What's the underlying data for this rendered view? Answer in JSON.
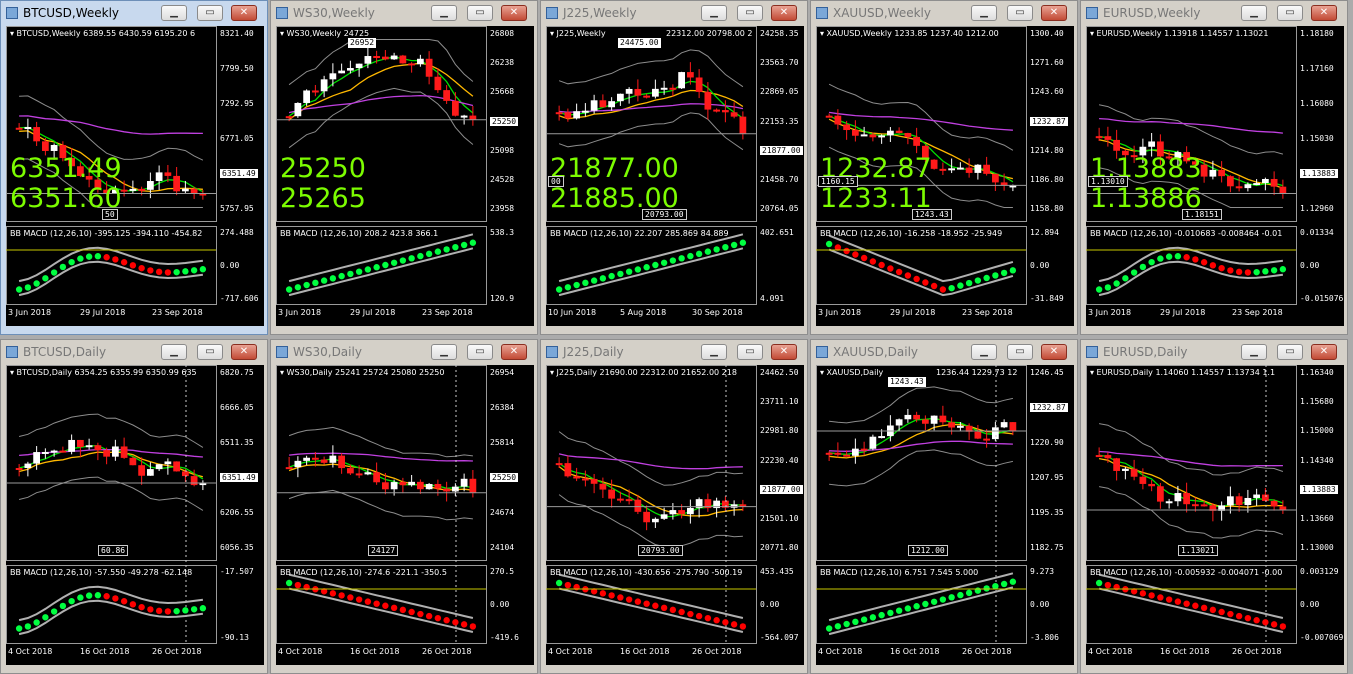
{
  "windows": [
    {
      "title": "BTCUSD,Weekly",
      "active": true,
      "header": "BTCUSD,Weekly  6389.55 6430.59 6195.20 6",
      "bid": "6351.49",
      "ask": "6351.60",
      "current": "6351.49",
      "price_ticks": [
        "8321.40",
        "7799.50",
        "7292.95",
        "6771.05",
        "6351.49",
        "5757.95"
      ],
      "macd_header": "BB MACD (12,26,10) -395.125 -394.110 -454.82",
      "macd_ticks": [
        "274.488",
        "0.00",
        "-717.606"
      ],
      "dates": [
        "3 Jun 2018",
        "29 Jul 2018",
        "23 Sep 2018"
      ],
      "texts": [
        "50"
      ],
      "seed": 1,
      "trend": "down",
      "macd_dir": "flat"
    },
    {
      "title": "WS30,Weekly",
      "active": false,
      "header": "WS30,Weekly  24725",
      "tag_top": "26952",
      "bid": "25250",
      "ask": "25265",
      "current": "25250",
      "price_ticks": [
        "26808",
        "26238",
        "25668",
        "25250",
        "25098",
        "24528",
        "23958"
      ],
      "macd_header": "BB MACD (12,26,10) 208.2 423.8 366.1",
      "macd_ticks": [
        "538.3",
        "120.9"
      ],
      "dates": [
        "3 Jun 2018",
        "29 Jul 2018",
        "23 Sep 2018"
      ],
      "texts": [],
      "seed": 2,
      "trend": "updown",
      "macd_dir": "up"
    },
    {
      "title": "J225,Weekly",
      "active": false,
      "header": "J225,Weekly",
      "tag_top": "24475.00",
      "header_right": "22312.00 20798.00 2",
      "bid": "21877.00",
      "ask": "21885.00",
      "current": "21877.00",
      "price_ticks": [
        "24258.35",
        "23563.70",
        "22869.05",
        "22153.35",
        "21877.00",
        "21458.70",
        "20764.05"
      ],
      "macd_header": "BB MACD (12,26,10) 22.207 285.869 84.889",
      "macd_ticks": [
        "402.651",
        "4.091"
      ],
      "dates": [
        "10 Jun 2018",
        "5 Aug 2018",
        "30 Sep 2018"
      ],
      "texts": [
        "20793.00",
        "00"
      ],
      "seed": 3,
      "trend": "updown",
      "macd_dir": "up"
    },
    {
      "title": "XAUUSD,Weekly",
      "active": false,
      "header": "XAUUSD,Weekly  1233.85 1237.40 1212.00",
      "bid": "1232.87",
      "ask": "1233.11",
      "current": "1232.87",
      "price_ticks": [
        "1300.40",
        "1271.60",
        "1243.60",
        "1232.87",
        "1214.80",
        "1186.80",
        "1158.80"
      ],
      "macd_header": "BB MACD (12,26,10) -16.258 -18.952 -25.949",
      "macd_ticks": [
        "12.894",
        "0.00",
        "-31.849"
      ],
      "dates": [
        "3 Jun 2018",
        "29 Jul 2018",
        "23 Sep 2018"
      ],
      "texts": [
        "1243.43",
        "1160.15"
      ],
      "seed": 4,
      "trend": "down",
      "macd_dir": "downup"
    },
    {
      "title": "EURUSD,Weekly",
      "active": false,
      "header": "EURUSD,Weekly  1.13918 1.14557 1.13021",
      "bid": "1.13883",
      "ask": "1.13886",
      "current": "1.13883",
      "price_ticks": [
        "1.18180",
        "1.17160",
        "1.16080",
        "1.15030",
        "1.13883",
        "1.12960"
      ],
      "macd_header": "BB MACD (12,26,10) -0.010683 -0.008464 -0.01",
      "macd_ticks": [
        "0.01334",
        "0.00",
        "-0.015076"
      ],
      "dates": [
        "3 Jun 2018",
        "29 Jul 2018",
        "23 Sep 2018"
      ],
      "texts": [
        "1.18151",
        "1.13010"
      ],
      "seed": 5,
      "trend": "down",
      "macd_dir": "flat"
    },
    {
      "title": "BTCUSD,Daily",
      "active": false,
      "header": "BTCUSD,Daily  6354.25 6355.99 6350.99 635",
      "current": "6351.49",
      "price_ticks": [
        "6820.75",
        "6666.05",
        "6511.35",
        "6351.49",
        "6206.55",
        "6056.35"
      ],
      "macd_header": "BB MACD (12,26,10) -57.550 -49.278 -62.148",
      "macd_ticks": [
        "-17.507",
        "-90.13"
      ],
      "dates": [
        "4 Oct 2018",
        "16 Oct 2018",
        "26 Oct 2018"
      ],
      "texts": [
        "60.86"
      ],
      "seed": 6,
      "trend": "flat",
      "macd_dir": "flat"
    },
    {
      "title": "WS30,Daily",
      "active": false,
      "header": "WS30,Daily  25241 25724 25080 25250",
      "current": "25250",
      "price_ticks": [
        "26954",
        "26384",
        "25814",
        "25250",
        "24674",
        "24104"
      ],
      "macd_header": "BB MACD (12,26,10) -274.6 -221.1 -350.5",
      "macd_ticks": [
        "270.5",
        "0.00",
        "-419.6"
      ],
      "dates": [
        "4 Oct 2018",
        "16 Oct 2018",
        "26 Oct 2018"
      ],
      "texts": [
        "24127"
      ],
      "seed": 7,
      "trend": "down",
      "macd_dir": "down"
    },
    {
      "title": "J225,Daily",
      "active": false,
      "header": "J225,Daily  21690.00 22312.00 21652.00 218",
      "current": "21877.00",
      "price_ticks": [
        "24462.50",
        "23711.10",
        "22981.80",
        "22230.40",
        "21877.00",
        "21501.10",
        "20771.80"
      ],
      "macd_header": "BB MACD (12,26,10) -430.656 -275.790 -500.19",
      "macd_ticks": [
        "453.435",
        "0.00",
        "-564.097"
      ],
      "dates": [
        "4 Oct 2018",
        "16 Oct 2018",
        "26 Oct 2018"
      ],
      "texts": [
        "20793.00"
      ],
      "seed": 8,
      "trend": "down",
      "macd_dir": "down"
    },
    {
      "title": "XAUUSD,Daily",
      "active": false,
      "header": "XAUUSD,Daily",
      "tag_top": "1243.43",
      "header_right": "1236.44 1229.73 12",
      "current": "1232.87",
      "price_ticks": [
        "1246.45",
        "1232.87",
        "1220.90",
        "1207.95",
        "1195.35",
        "1182.75"
      ],
      "macd_header": "BB MACD (12,26,10) 6.751 7.545 5.000",
      "macd_ticks": [
        "9.273",
        "0.00",
        "-3.806"
      ],
      "dates": [
        "4 Oct 2018",
        "16 Oct 2018",
        "26 Oct 2018"
      ],
      "texts": [
        "1212.00"
      ],
      "seed": 9,
      "trend": "up",
      "macd_dir": "up"
    },
    {
      "title": "EURUSD,Daily",
      "active": false,
      "header": "EURUSD,Daily  1.14060 1.14557 1.13734 1.1",
      "current": "1.13883",
      "price_ticks": [
        "1.16340",
        "1.15680",
        "1.15000",
        "1.14340",
        "1.13883",
        "1.13660",
        "1.13000"
      ],
      "macd_header": "BB MACD (12,26,10) -0.005932 -0.004071 -0.00",
      "macd_ticks": [
        "0.003129",
        "0.00",
        "-0.007069"
      ],
      "dates": [
        "4 Oct 2018",
        "16 Oct 2018",
        "26 Oct 2018"
      ],
      "texts": [
        "1.13021"
      ],
      "seed": 10,
      "trend": "down",
      "macd_dir": "down"
    }
  ]
}
